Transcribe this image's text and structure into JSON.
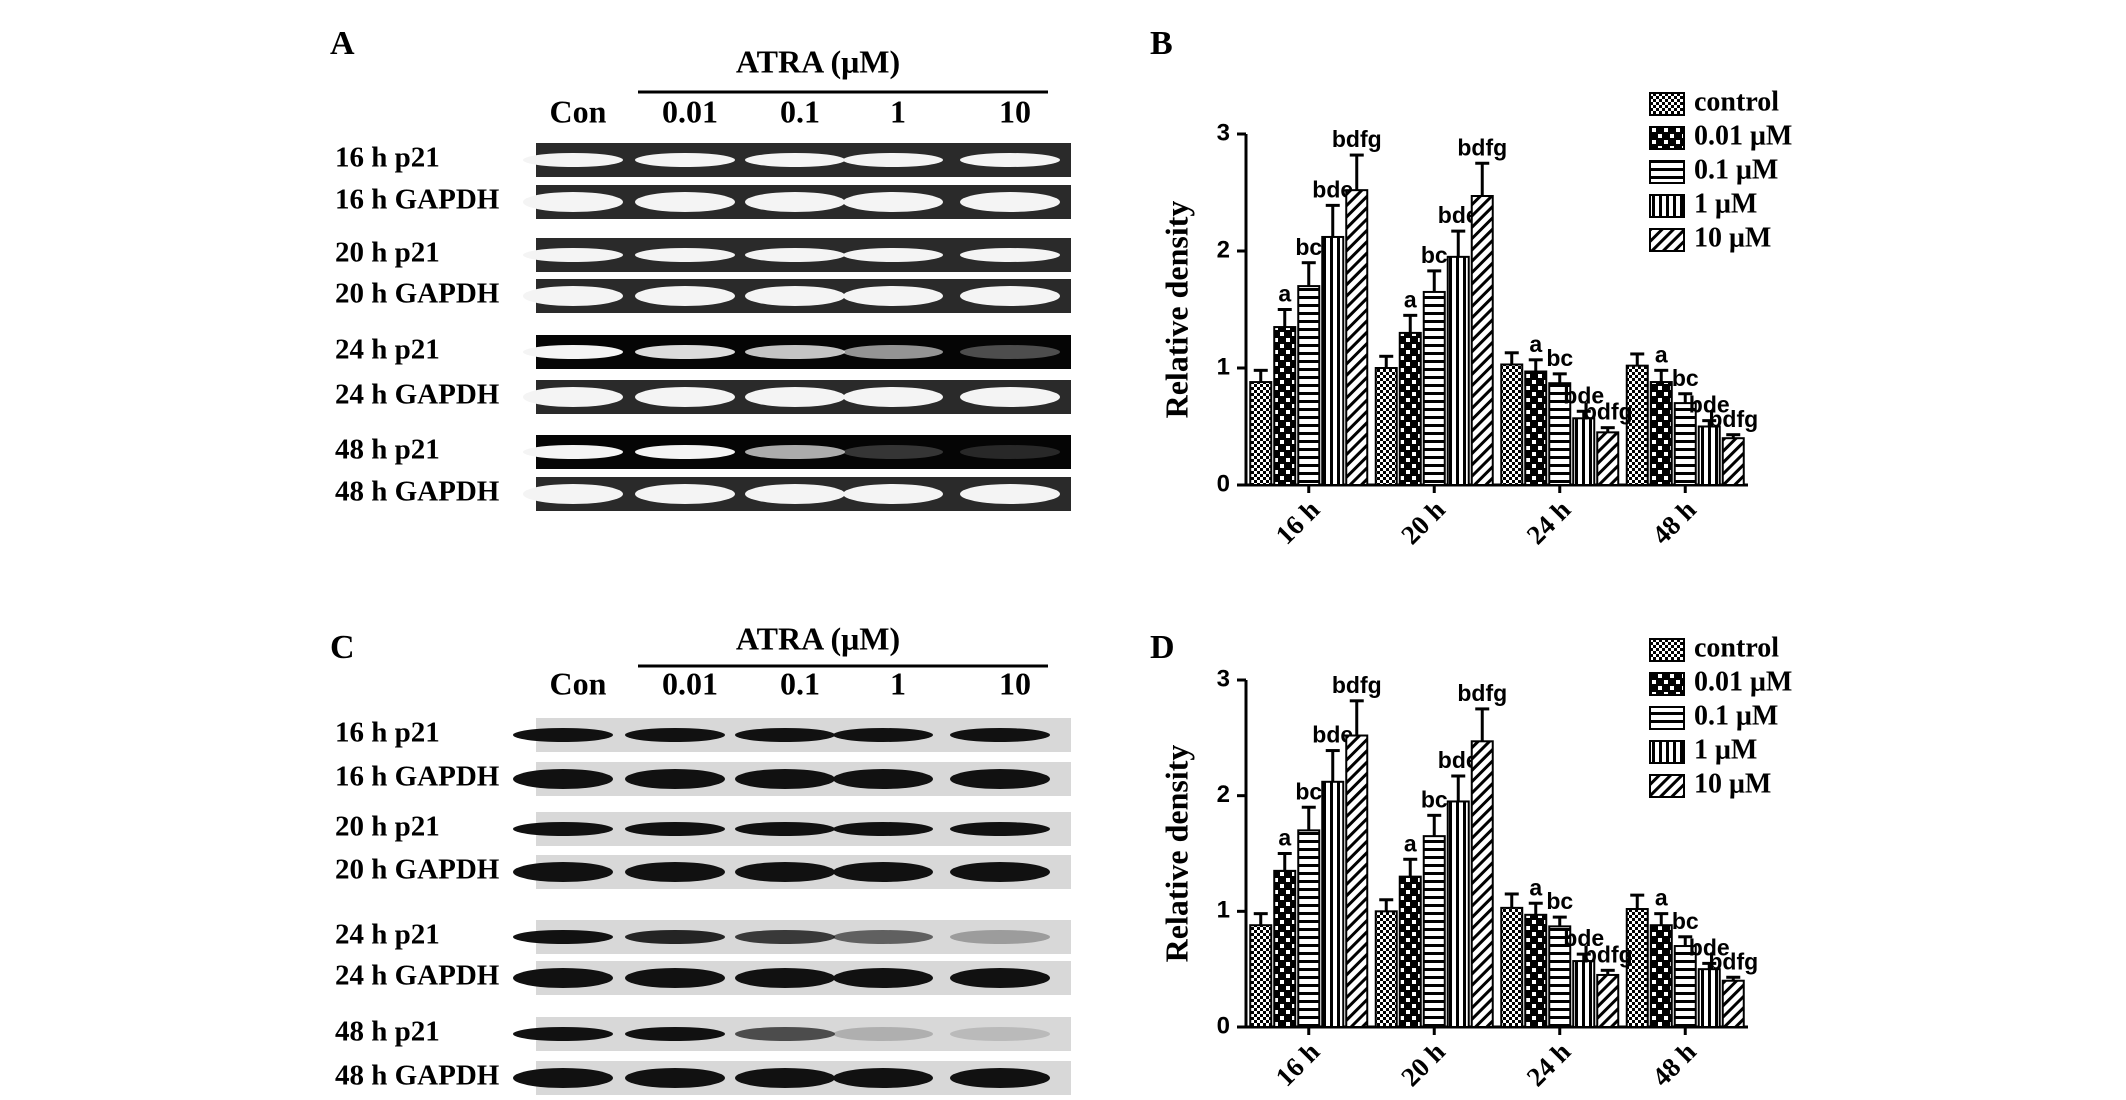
{
  "blots": [
    {
      "letter": "A",
      "header": "ATRA (μM)",
      "lanes": [
        "Con",
        "0.01",
        "0.1",
        "1",
        "10"
      ],
      "rows": [
        "16 h p21",
        "16 h GAPDH",
        "20 h p21",
        "20 h GAPDH",
        "24 h p21",
        "24 h GAPDH",
        "48 h p21",
        "48 h GAPDH"
      ]
    },
    {
      "letter": "C",
      "header": "ATRA (μM)",
      "lanes": [
        "Con",
        "0.01",
        "0.1",
        "1",
        "10"
      ],
      "rows": [
        "16 h p21",
        "16 h GAPDH",
        "20 h p21",
        "20 h GAPDH",
        "24 h p21",
        "24 h GAPDH",
        "48 h p21",
        "48 h GAPDH"
      ]
    }
  ],
  "chart_data": [
    {
      "type": "bar",
      "letter": "B",
      "ylabel": "Relative density",
      "categories": [
        "16 h",
        "20 h",
        "24 h",
        "48 h"
      ],
      "ylim": [
        0,
        3
      ],
      "yticks": [
        0,
        1,
        2,
        3
      ],
      "legend": "top-right",
      "series": [
        {
          "name": "control",
          "color": "#000000",
          "pattern": "checker",
          "values": [
            0.88,
            1.0,
            1.03,
            1.02
          ],
          "errors": [
            0.1,
            0.1,
            0.1,
            0.1
          ]
        },
        {
          "name": "0.01 μM",
          "color": "#000000",
          "pattern": "bigcheck",
          "values": [
            1.35,
            1.3,
            0.97,
            0.88
          ],
          "errors": [
            0.15,
            0.15,
            0.1,
            0.1
          ],
          "annotations": [
            "a",
            "a",
            "a",
            "a"
          ]
        },
        {
          "name": "0.1 μM",
          "color": "#000000",
          "pattern": "hlines",
          "values": [
            1.7,
            1.65,
            0.87,
            0.7
          ],
          "errors": [
            0.2,
            0.18,
            0.08,
            0.08
          ],
          "annotations": [
            "bc",
            "bc",
            "bc",
            "bc"
          ]
        },
        {
          "name": "1 μM",
          "color": "#000000",
          "pattern": "vlines",
          "values": [
            2.12,
            1.95,
            0.57,
            0.5
          ],
          "errors": [
            0.27,
            0.22,
            0.06,
            0.05
          ],
          "annotations": [
            "bde",
            "bde",
            "bde",
            "bde"
          ]
        },
        {
          "name": "10 μM",
          "color": "#000000",
          "pattern": "diag",
          "values": [
            2.52,
            2.47,
            0.45,
            0.4
          ],
          "errors": [
            0.3,
            0.28,
            0.04,
            0.03
          ],
          "annotations": [
            "bdfg",
            "bdfg",
            "bdfg",
            "bdfg"
          ]
        }
      ]
    },
    {
      "type": "bar",
      "letter": "D",
      "ylabel": "Relative density",
      "categories": [
        "16 h",
        "20 h",
        "24 h",
        "48 h"
      ],
      "ylim": [
        0,
        3
      ],
      "yticks": [
        0,
        1,
        2,
        3
      ],
      "legend": "top-right",
      "series": [
        {
          "name": "control",
          "color": "#000000",
          "pattern": "checker",
          "values": [
            0.88,
            1.0,
            1.03,
            1.02
          ],
          "errors": [
            0.1,
            0.1,
            0.12,
            0.12
          ]
        },
        {
          "name": "0.01 μM",
          "color": "#000000",
          "pattern": "bigcheck",
          "values": [
            1.35,
            1.3,
            0.97,
            0.88
          ],
          "errors": [
            0.15,
            0.15,
            0.1,
            0.1
          ],
          "annotations": [
            "a",
            "a",
            "a",
            "a"
          ]
        },
        {
          "name": "0.1 μM",
          "color": "#000000",
          "pattern": "hlines",
          "values": [
            1.7,
            1.65,
            0.87,
            0.7
          ],
          "errors": [
            0.2,
            0.18,
            0.08,
            0.08
          ],
          "annotations": [
            "bc",
            "bc",
            "bc",
            "bc"
          ]
        },
        {
          "name": "1 μM",
          "color": "#000000",
          "pattern": "vlines",
          "values": [
            2.12,
            1.95,
            0.57,
            0.5
          ],
          "errors": [
            0.27,
            0.22,
            0.06,
            0.05
          ],
          "annotations": [
            "bde",
            "bde",
            "bde",
            "bde"
          ]
        },
        {
          "name": "10 μM",
          "color": "#000000",
          "pattern": "diag",
          "values": [
            2.52,
            2.47,
            0.45,
            0.4
          ],
          "errors": [
            0.3,
            0.28,
            0.04,
            0.03
          ],
          "annotations": [
            "bdfg",
            "bdfg",
            "bdfg",
            "bdfg"
          ]
        }
      ]
    }
  ]
}
